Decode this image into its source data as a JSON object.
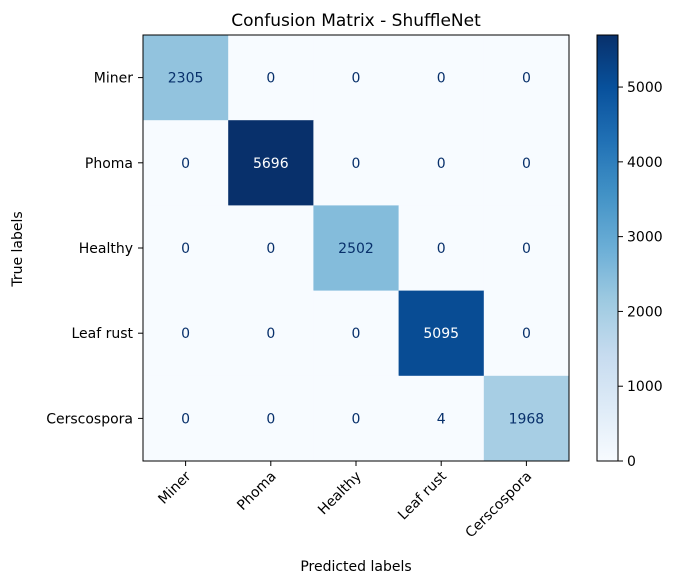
{
  "chart_data": {
    "type": "heatmap",
    "title": "Confusion Matrix - ShuffleNet",
    "xlabel": "Predicted labels",
    "ylabel": "True labels",
    "x_categories": [
      "Miner",
      "Phoma",
      "Healthy",
      "Leaf rust",
      "Cerscospora"
    ],
    "y_categories": [
      "Miner",
      "Phoma",
      "Healthy",
      "Leaf rust",
      "Cerscospora"
    ],
    "values": [
      [
        2305,
        0,
        0,
        0,
        0
      ],
      [
        0,
        5696,
        0,
        0,
        0
      ],
      [
        0,
        0,
        2502,
        0,
        0
      ],
      [
        0,
        0,
        0,
        5095,
        0
      ],
      [
        0,
        0,
        0,
        4,
        1968
      ]
    ],
    "colormap": "Blues",
    "value_range": [
      0,
      5696
    ],
    "colorbar_ticks": [
      0,
      1000,
      2000,
      3000,
      4000,
      5000
    ],
    "grid": false,
    "light_text_color": "#ffffff",
    "dark_text_color": "#08306b"
  }
}
